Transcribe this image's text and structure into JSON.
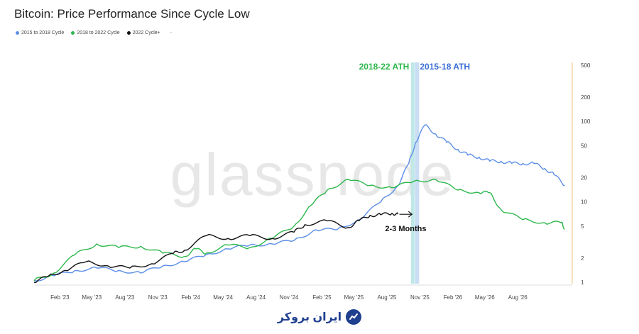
{
  "title": "Bitcoin: Price Performance Since Cycle Low",
  "legend": [
    {
      "label": "2015 to 2018 Cycle",
      "color": "#5b8ee6"
    },
    {
      "label": "2018 to 2022 Cycle",
      "color": "#2db84d"
    },
    {
      "label": "2022 Cycle+",
      "color": "#111111"
    }
  ],
  "legend_extra": "-",
  "watermark": "glassnode",
  "brand_name": "ایران بروکر",
  "chart_data": {
    "type": "line",
    "yscale": "log",
    "ylim": [
      1,
      500
    ],
    "yticks": [
      1,
      2,
      5,
      10,
      20,
      50,
      100,
      200,
      500
    ],
    "xlim": [
      "2022-11-21",
      "2026-12-31"
    ],
    "xticks": [
      "Feb '23",
      "May '23",
      "Aug '23",
      "Nov '23",
      "Feb '24",
      "May '24",
      "Aug '24",
      "Nov '24",
      "Feb '25",
      "May '25",
      "Aug '25",
      "Nov '25",
      "Feb '26",
      "May '26",
      "Aug '26"
    ],
    "xtick_dates": [
      "2023-02-01",
      "2023-05-01",
      "2023-08-01",
      "2023-11-01",
      "2024-02-01",
      "2024-05-01",
      "2024-08-01",
      "2024-11-01",
      "2025-02-01",
      "2025-05-01",
      "2025-08-01",
      "2025-11-01",
      "2026-02-01",
      "2026-05-01",
      "2026-08-01"
    ],
    "series": [
      {
        "name": "2015 to 2018 Cycle",
        "color": "#5b8ee6",
        "x": [
          "2022-11-21",
          "2023-01-15",
          "2023-03-15",
          "2023-05-15",
          "2023-07-15",
          "2023-09-15",
          "2023-11-15",
          "2024-01-15",
          "2024-03-15",
          "2024-05-15",
          "2024-07-15",
          "2024-09-15",
          "2024-11-15",
          "2025-01-15",
          "2025-03-15",
          "2025-05-15",
          "2025-07-15",
          "2025-09-01",
          "2025-10-01",
          "2025-10-20",
          "2025-11-15",
          "2025-12-15",
          "2026-01-15",
          "2026-02-15",
          "2026-03-15",
          "2026-04-15",
          "2026-05-15",
          "2026-06-15",
          "2026-07-15",
          "2026-08-15",
          "2026-09-15",
          "2026-10-15",
          "2026-11-10",
          "2026-12-10"
        ],
        "y": [
          1.05,
          1.2,
          1.4,
          1.5,
          1.4,
          1.3,
          1.6,
          1.8,
          2.2,
          2.6,
          2.9,
          3.0,
          3.3,
          4.5,
          4.5,
          6.0,
          10,
          16,
          30,
          55,
          90,
          70,
          55,
          45,
          38,
          36,
          32,
          32,
          30,
          30,
          30,
          26,
          22,
          16
        ]
      },
      {
        "name": "2018 to 2022 Cycle",
        "color": "#2db84d",
        "x": [
          "2022-11-21",
          "2023-01-15",
          "2023-03-15",
          "2023-05-15",
          "2023-07-15",
          "2023-09-15",
          "2023-11-15",
          "2024-01-15",
          "2024-02-15",
          "2024-03-15",
          "2024-05-15",
          "2024-07-15",
          "2024-09-15",
          "2024-11-15",
          "2025-01-01",
          "2025-02-15",
          "2025-04-15",
          "2025-06-15",
          "2025-08-15",
          "2025-10-15",
          "2025-12-15",
          "2026-02-15",
          "2026-04-15",
          "2026-05-15",
          "2026-06-15",
          "2026-08-15",
          "2026-10-15",
          "2026-12-01",
          "2026-12-10"
        ],
        "y": [
          1.05,
          1.3,
          2.2,
          3.0,
          2.7,
          2.8,
          2.3,
          2.1,
          2.6,
          2.3,
          2.9,
          2.7,
          3.5,
          5.0,
          9.0,
          14,
          19,
          16,
          15,
          18,
          19,
          14,
          13,
          13,
          8,
          6,
          5.5,
          5.5,
          4.6
        ]
      },
      {
        "name": "2022 Cycle+",
        "color": "#111111",
        "x": [
          "2022-11-21",
          "2023-01-01",
          "2023-02-15",
          "2023-04-15",
          "2023-06-15",
          "2023-08-15",
          "2023-10-15",
          "2023-12-15",
          "2024-01-15",
          "2024-03-15",
          "2024-05-15",
          "2024-07-15",
          "2024-09-15",
          "2024-11-15",
          "2024-12-15",
          "2025-02-15",
          "2025-04-15",
          "2025-05-15",
          "2025-06-15",
          "2025-07-15",
          "2025-08-15",
          "2025-09-01"
        ],
        "y": [
          1.0,
          1.2,
          1.4,
          1.8,
          1.6,
          1.5,
          1.7,
          2.3,
          2.5,
          3.8,
          3.5,
          3.8,
          3.5,
          4.2,
          5.2,
          5.8,
          4.8,
          5.8,
          6.8,
          6.9,
          7.2,
          7.0
        ]
      }
    ],
    "annotations": [
      {
        "text": "2018-22 ATH",
        "color": "#2db84d",
        "date": "2025-10-12"
      },
      {
        "text": "2015-18 ATH",
        "color": "#3c6fd6",
        "date": "2025-10-24"
      },
      {
        "text": "2-3 Months",
        "color": "#111111",
        "arrow_from": "2025-09-05",
        "arrow_to": "2025-10-10",
        "value": 7.0
      }
    ],
    "ath_bands": [
      {
        "from": "2025-10-07",
        "to": "2025-10-17",
        "color": "#bfe8e6"
      },
      {
        "from": "2025-10-18",
        "to": "2025-10-30",
        "color": "#c9def5"
      }
    ]
  }
}
